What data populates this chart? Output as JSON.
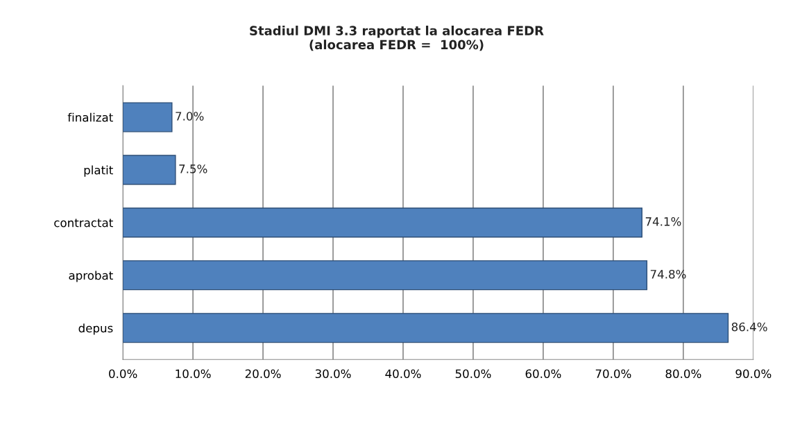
{
  "chart_data": {
    "type": "bar",
    "orientation": "horizontal",
    "title": "Stadiul DMI 3.3 raportat la alocarea FEDR\n(alocarea FEDR =  100%)",
    "categories": [
      "finalizat",
      "platit",
      "contractat",
      "aprobat",
      "depus"
    ],
    "values": [
      7.0,
      7.5,
      74.1,
      74.8,
      86.4
    ],
    "value_labels": [
      "7.0%",
      "7.5%",
      "74.1%",
      "74.8%",
      "86.4%"
    ],
    "color": "#4f81bd",
    "xlim": [
      0,
      90
    ],
    "xticks": [
      {
        "value": 0,
        "label": "0.0%"
      },
      {
        "value": 10,
        "label": "10.0%"
      },
      {
        "value": 20,
        "label": "20.0%"
      },
      {
        "value": 30,
        "label": "30.0%"
      },
      {
        "value": 40,
        "label": "40.0%"
      },
      {
        "value": 50,
        "label": "50.0%"
      },
      {
        "value": 60,
        "label": "60.0%"
      },
      {
        "value": 70,
        "label": "70.0%"
      },
      {
        "value": 80,
        "label": "80.0%"
      },
      {
        "value": 90,
        "label": "90.0%"
      }
    ],
    "grid": "x",
    "legend": false
  }
}
